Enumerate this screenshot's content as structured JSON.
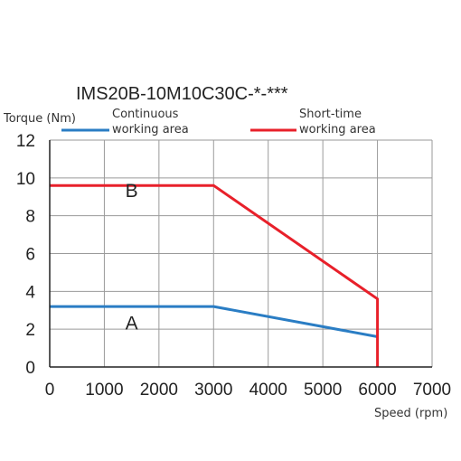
{
  "chart_data": {
    "type": "line",
    "title": "IMS20B-10M10C30C-*-***",
    "xlabel": "Speed (rpm)",
    "ylabel": "Torque (Nm)",
    "xlim": [
      0,
      7000
    ],
    "ylim": [
      0,
      12
    ],
    "xticks": [
      0,
      1000,
      2000,
      3000,
      4000,
      5000,
      6000,
      7000
    ],
    "yticks": [
      0,
      2,
      4,
      6,
      8,
      10,
      12
    ],
    "grid": true,
    "legend_position": "top",
    "series": [
      {
        "name": "Continuous working area",
        "legend_lines": [
          "Continuous",
          "working area"
        ],
        "color": "#2a7dc4",
        "annotation": "A",
        "annotation_at": [
          1500,
          2.6
        ],
        "points": [
          [
            0,
            3.2
          ],
          [
            3000,
            3.2
          ],
          [
            6000,
            1.6
          ]
        ]
      },
      {
        "name": "Short-time working area",
        "legend_lines": [
          "Short-time",
          "working area"
        ],
        "color": "#e8202a",
        "annotation": "B",
        "annotation_at": [
          1500,
          9.6
        ],
        "points": [
          [
            0,
            9.6
          ],
          [
            3000,
            9.6
          ],
          [
            6000,
            3.6
          ],
          [
            6000,
            0
          ]
        ]
      }
    ]
  }
}
